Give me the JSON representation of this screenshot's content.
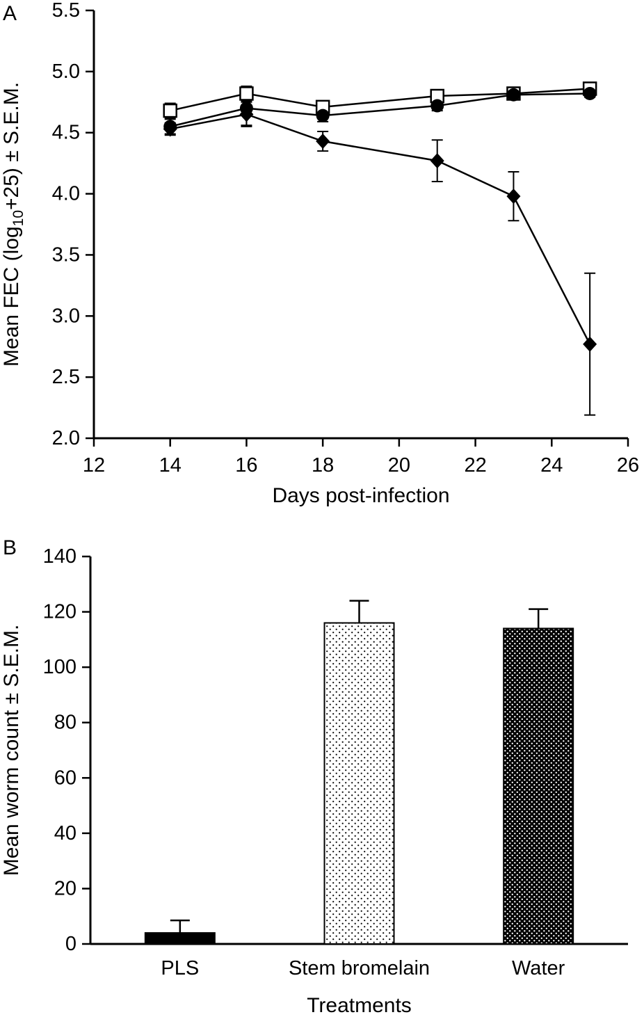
{
  "panels": [
    {
      "label": "A"
    },
    {
      "label": "B"
    }
  ],
  "chart_data": [
    {
      "type": "line",
      "panel": "A",
      "title": "",
      "xlabel": "Days post-infection",
      "ylabel": "Mean FEC (log10+25) ± S.E.M.",
      "ylabel_rich": [
        {
          "text": "Mean FEC (log",
          "sub": false
        },
        {
          "text": "10",
          "sub": true
        },
        {
          "text": "+25) ± S.E.M.",
          "sub": false
        }
      ],
      "xlim": [
        12,
        26
      ],
      "ylim": [
        2.0,
        5.5
      ],
      "xticks": [
        12,
        14,
        16,
        18,
        20,
        22,
        24,
        26
      ],
      "xtick_labels": [
        "12",
        "14",
        "16",
        "18",
        "20",
        "22",
        "24",
        "26"
      ],
      "yticks": [
        2.0,
        2.5,
        3.0,
        3.5,
        4.0,
        4.5,
        5.0,
        5.5
      ],
      "ytick_labels": [
        "2.0",
        "2.5",
        "3.0",
        "3.5",
        "4.0",
        "4.5",
        "5.0",
        "5.5"
      ],
      "grid": false,
      "legend": "none",
      "x": [
        14,
        16,
        18,
        21,
        23,
        25
      ],
      "series": [
        {
          "name": "open-square",
          "marker": "square-open",
          "values": [
            4.68,
            4.82,
            4.71,
            4.8,
            4.82,
            4.86
          ],
          "errors": [
            0.06,
            0.06,
            0.05,
            0.05,
            0.03,
            0.03
          ]
        },
        {
          "name": "filled-circle",
          "marker": "circle-filled",
          "values": [
            4.55,
            4.7,
            4.64,
            4.72,
            4.81,
            4.82
          ],
          "errors": [
            0.06,
            0.14,
            0.05,
            0.04,
            0.03,
            0.03
          ]
        },
        {
          "name": "filled-diamond",
          "marker": "diamond-filled",
          "values": [
            4.53,
            4.65,
            4.43,
            4.27,
            3.98,
            2.77
          ],
          "errors": [
            0.05,
            0.1,
            0.08,
            0.17,
            0.2,
            0.58
          ]
        }
      ]
    },
    {
      "type": "bar",
      "panel": "B",
      "title": "",
      "xlabel": "Treatments",
      "ylabel": "Mean worm count ± S.E.M.",
      "ylim": [
        0,
        140
      ],
      "yticks": [
        0,
        20,
        40,
        60,
        80,
        100,
        120,
        140
      ],
      "ytick_labels": [
        "0",
        "20",
        "40",
        "60",
        "80",
        "100",
        "120",
        "140"
      ],
      "grid": false,
      "legend": "none",
      "categories": [
        "PLS",
        "Stem bromelain",
        "Water"
      ],
      "values": [
        4,
        116,
        114
      ],
      "errors": [
        4.5,
        8,
        7
      ],
      "bar_styles": [
        "solid-black",
        "white-dotted",
        "black-dotted"
      ]
    }
  ]
}
